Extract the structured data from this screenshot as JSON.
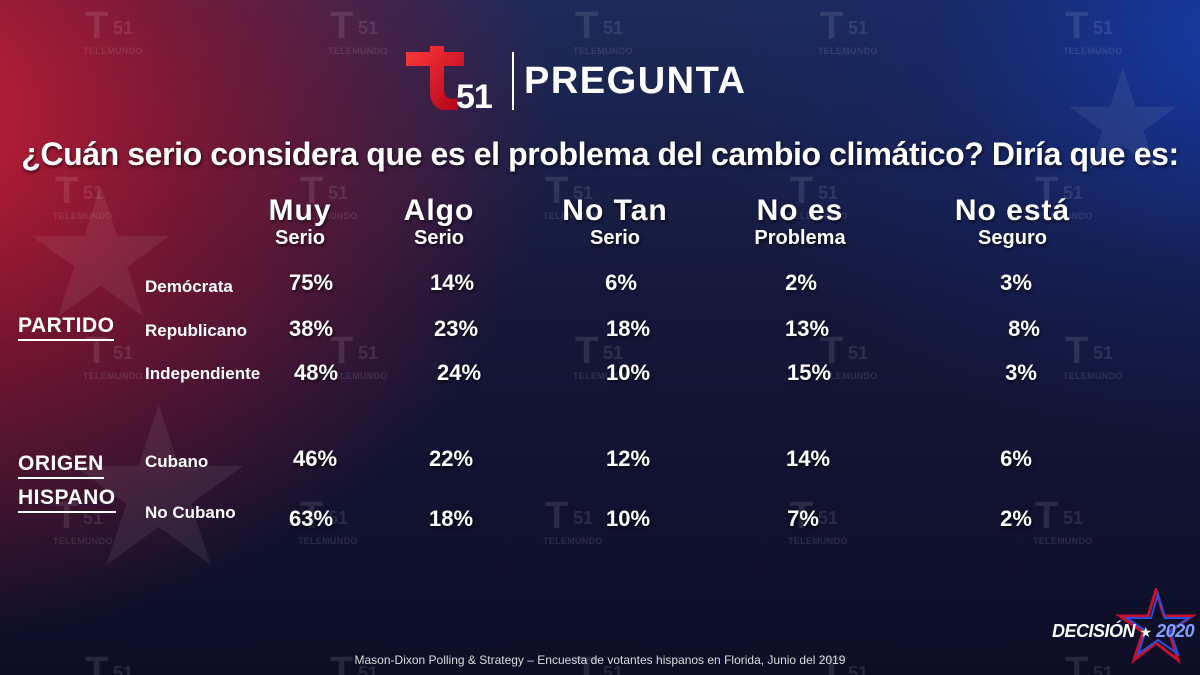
{
  "brand": {
    "logo_letter": "T",
    "logo_number": "51",
    "watermark_word": "TELEMUNDO"
  },
  "header": {
    "title": "PREGUNTA"
  },
  "question": "¿Cuán serio considera que es el problema del cambio climático? Diría que es:",
  "columns": [
    {
      "line1": "Muy",
      "line2": "Serio"
    },
    {
      "line1": "Algo",
      "line2": "Serio"
    },
    {
      "line1": "No Tan",
      "line2": "Serio"
    },
    {
      "line1": "No es",
      "line2": "Problema"
    },
    {
      "line1": "No está",
      "line2": "Seguro"
    }
  ],
  "groups": [
    {
      "label": "PARTIDO",
      "rows": [
        {
          "label": "Demócrata",
          "values": [
            "75%",
            "14%",
            "6%",
            "2%",
            "3%"
          ]
        },
        {
          "label": "Republicano",
          "values": [
            "38%",
            "23%",
            "18%",
            "13%",
            "8%"
          ]
        },
        {
          "label": "Independiente",
          "values": [
            "48%",
            "24%",
            "10%",
            "15%",
            "3%"
          ]
        }
      ]
    },
    {
      "label_line1": "ORIGEN",
      "label_line2": "HISPANO",
      "rows": [
        {
          "label": "Cubano",
          "values": [
            "46%",
            "22%",
            "12%",
            "14%",
            "6%"
          ]
        },
        {
          "label": "No Cubano",
          "values": [
            "63%",
            "18%",
            "10%",
            "7%",
            "2%"
          ]
        }
      ]
    }
  ],
  "footer": "Mason-Dixon  Polling & Strategy – Encuesta de votantes hispanos en Florida, Junio del 2019",
  "decision_badge": {
    "word": "DECISIÓN",
    "star": "★",
    "year": "2020"
  },
  "colors": {
    "brand_red": "#e0182d",
    "accent_blue": "#2a4fd6",
    "text": "#ffffff"
  }
}
